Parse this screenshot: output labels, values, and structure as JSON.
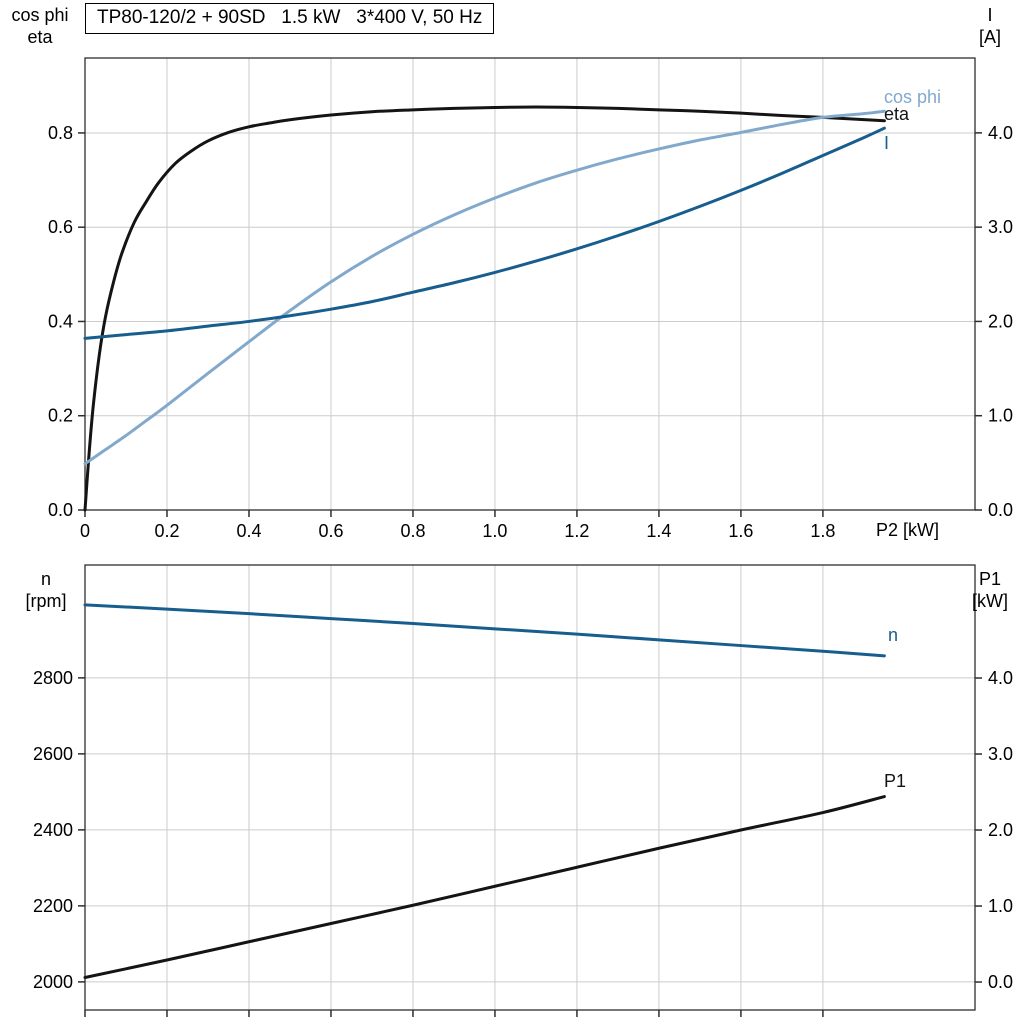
{
  "title_box": {
    "text": "TP80-120/2 + 90SD   1.5 kW   3*400 V, 50 Hz"
  },
  "colors": {
    "curve_black": "#141414",
    "light_blue": "#82a9cc",
    "dark_blue": "#175d8d",
    "grid": "#cccccc",
    "axis": "#2e2e2e",
    "tick_text": "#000000"
  },
  "chart_data": [
    {
      "type": "line",
      "name": "efficiency-cosphi-current-panel",
      "x_axis": {
        "label": "P2 [kW]",
        "range": [
          0,
          2.171
        ],
        "tick_values": [
          0,
          0.2,
          0.4,
          0.6,
          0.8,
          1.0,
          1.2,
          1.4,
          1.6,
          1.8
        ],
        "tick_labels": [
          "0",
          "0.2",
          "0.4",
          "0.6",
          "0.8",
          "1.0",
          "1.2",
          "1.4",
          "1.6",
          "1.8"
        ]
      },
      "left_axis": {
        "label_line1": "cos phi",
        "label_line2": "eta",
        "range": [
          0,
          0.959
        ],
        "tick_values": [
          0,
          0.2,
          0.4,
          0.6,
          0.8
        ],
        "tick_labels": [
          "0.0",
          "0.2",
          "0.4",
          "0.6",
          "0.8"
        ]
      },
      "right_axis": {
        "label_line1": "I",
        "label_line2": "[A]",
        "range": [
          0,
          4.794
        ],
        "tick_values": [
          0,
          1,
          2,
          3,
          4
        ],
        "tick_labels": [
          "0.0",
          "1.0",
          "2.0",
          "3.0",
          "4.0"
        ]
      },
      "series": [
        {
          "name": "eta",
          "label": "eta",
          "axis": "left",
          "color_key": "curve_black",
          "points": [
            [
              0,
              0
            ],
            [
              0.01,
              0.12
            ],
            [
              0.02,
              0.22
            ],
            [
              0.035,
              0.33
            ],
            [
              0.05,
              0.41
            ],
            [
              0.07,
              0.485
            ],
            [
              0.09,
              0.545
            ],
            [
              0.12,
              0.61
            ],
            [
              0.15,
              0.655
            ],
            [
              0.18,
              0.695
            ],
            [
              0.22,
              0.735
            ],
            [
              0.26,
              0.762
            ],
            [
              0.3,
              0.783
            ],
            [
              0.35,
              0.801
            ],
            [
              0.4,
              0.813
            ],
            [
              0.45,
              0.821
            ],
            [
              0.5,
              0.828
            ],
            [
              0.6,
              0.838
            ],
            [
              0.7,
              0.845
            ],
            [
              0.8,
              0.849
            ],
            [
              0.9,
              0.852
            ],
            [
              1.0,
              0.854
            ],
            [
              1.1,
              0.855
            ],
            [
              1.2,
              0.854
            ],
            [
              1.3,
              0.852
            ],
            [
              1.4,
              0.849
            ],
            [
              1.5,
              0.846
            ],
            [
              1.6,
              0.842
            ],
            [
              1.7,
              0.837
            ],
            [
              1.8,
              0.833
            ],
            [
              1.95,
              0.826
            ]
          ]
        },
        {
          "name": "cos-phi",
          "label": "cos phi",
          "axis": "left",
          "color_key": "light_blue",
          "points": [
            [
              0,
              0.098
            ],
            [
              0.05,
              0.128
            ],
            [
              0.1,
              0.158
            ],
            [
              0.15,
              0.19
            ],
            [
              0.2,
              0.222
            ],
            [
              0.3,
              0.29
            ],
            [
              0.4,
              0.357
            ],
            [
              0.5,
              0.423
            ],
            [
              0.6,
              0.484
            ],
            [
              0.7,
              0.538
            ],
            [
              0.8,
              0.585
            ],
            [
              0.9,
              0.626
            ],
            [
              1.0,
              0.662
            ],
            [
              1.1,
              0.694
            ],
            [
              1.2,
              0.721
            ],
            [
              1.3,
              0.745
            ],
            [
              1.4,
              0.766
            ],
            [
              1.5,
              0.785
            ],
            [
              1.6,
              0.801
            ],
            [
              1.7,
              0.818
            ],
            [
              1.8,
              0.833
            ],
            [
              1.9,
              0.841
            ],
            [
              1.95,
              0.846
            ]
          ]
        },
        {
          "name": "current",
          "label": "I",
          "axis": "right",
          "color_key": "dark_blue",
          "points": [
            [
              0,
              1.82
            ],
            [
              0.1,
              1.86
            ],
            [
              0.2,
              1.9
            ],
            [
              0.3,
              1.95
            ],
            [
              0.4,
              2.0
            ],
            [
              0.5,
              2.06
            ],
            [
              0.6,
              2.13
            ],
            [
              0.7,
              2.21
            ],
            [
              0.8,
              2.31
            ],
            [
              0.9,
              2.41
            ],
            [
              1.0,
              2.52
            ],
            [
              1.1,
              2.64
            ],
            [
              1.2,
              2.77
            ],
            [
              1.3,
              2.91
            ],
            [
              1.4,
              3.06
            ],
            [
              1.5,
              3.22
            ],
            [
              1.6,
              3.39
            ],
            [
              1.7,
              3.57
            ],
            [
              1.8,
              3.76
            ],
            [
              1.9,
              3.95
            ],
            [
              1.95,
              4.05
            ]
          ]
        }
      ]
    },
    {
      "type": "line",
      "name": "speed-power-panel",
      "x_axis": {
        "label": "",
        "range": [
          0,
          2.171
        ],
        "tick_values": [
          0,
          0.2,
          0.4,
          0.6,
          0.8,
          1.0,
          1.2,
          1.4,
          1.6,
          1.8
        ],
        "tick_labels": []
      },
      "left_axis": {
        "label_line1": "n",
        "label_line2": "[rpm]",
        "range": [
          1926,
          3097
        ],
        "tick_values": [
          2000,
          2200,
          2400,
          2600,
          2800
        ],
        "tick_labels": [
          "2000",
          "2200",
          "2400",
          "2600",
          "2800"
        ]
      },
      "right_axis": {
        "label_line1": "P1",
        "label_line2": "[kW]",
        "range": [
          -0.368,
          5.487
        ],
        "tick_values": [
          0,
          1,
          2,
          3,
          4
        ],
        "tick_labels": [
          "0.0",
          "1.0",
          "2.0",
          "3.0",
          "4.0"
        ]
      },
      "series": [
        {
          "name": "speed",
          "label": "n",
          "axis": "left",
          "color_key": "dark_blue",
          "points": [
            [
              0,
              2992
            ],
            [
              0.2,
              2981
            ],
            [
              0.4,
              2969
            ],
            [
              0.6,
              2956
            ],
            [
              0.8,
              2943
            ],
            [
              1.0,
              2929
            ],
            [
              1.2,
              2915
            ],
            [
              1.4,
              2900
            ],
            [
              1.6,
              2885
            ],
            [
              1.8,
              2870
            ],
            [
              1.95,
              2858
            ]
          ]
        },
        {
          "name": "input-power",
          "label": "P1",
          "axis": "right",
          "color_key": "curve_black",
          "points": [
            [
              0,
              0.06
            ],
            [
              0.2,
              0.29
            ],
            [
              0.4,
              0.53
            ],
            [
              0.6,
              0.77
            ],
            [
              0.8,
              1.01
            ],
            [
              1.0,
              1.26
            ],
            [
              1.2,
              1.51
            ],
            [
              1.4,
              1.76
            ],
            [
              1.6,
              2.0
            ],
            [
              1.8,
              2.23
            ],
            [
              1.95,
              2.44
            ]
          ]
        }
      ]
    }
  ]
}
